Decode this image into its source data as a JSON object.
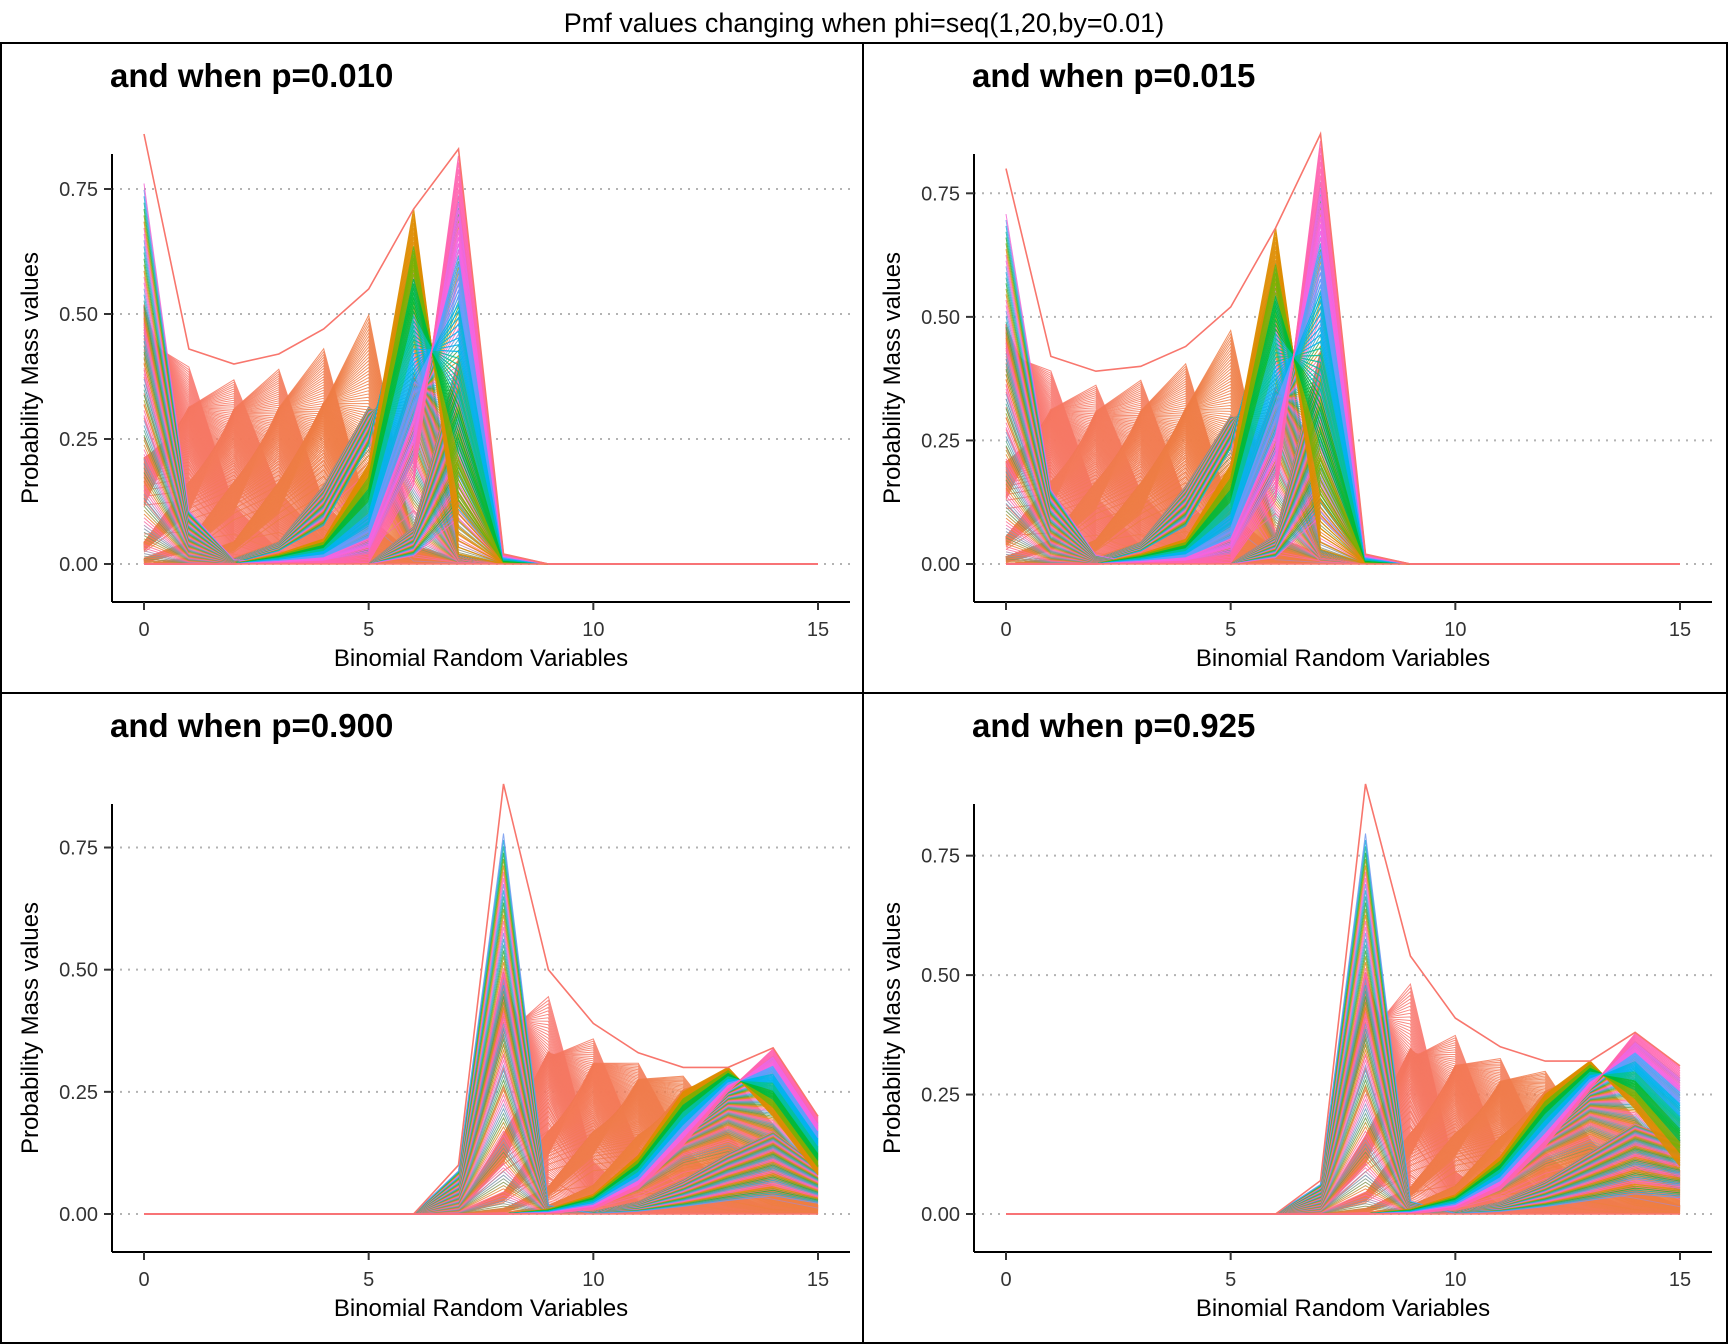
{
  "title": "Pmf values changing when phi=seq(1,20,by=0.01)",
  "colors": {
    "salmon": "#f8766d",
    "orange": "#de8c00",
    "olive": "#7cae00",
    "green": "#00ba38",
    "teal": "#00c19f",
    "cyan": "#00b4f0",
    "blue": "#619cff",
    "magenta": "#f564e3",
    "pink": "#ff64b0"
  },
  "chart_data": [
    {
      "type": "line",
      "title": "and when p=0.010",
      "xlabel": "Binomial Random Variables",
      "ylabel": "Probability Mass values",
      "xlim": [
        0,
        15
      ],
      "ylim": [
        0,
        0.86
      ],
      "xticks": [
        0,
        5,
        10,
        15
      ],
      "xtick_labels": [
        "0",
        "5",
        "10",
        "15"
      ],
      "yticks": [
        0,
        0.25,
        0.5,
        0.75
      ],
      "ytick_labels": [
        "0.00",
        "0.25",
        "0.50",
        "0.75"
      ],
      "grid": "horizontal dotted",
      "x": [
        0,
        1,
        2,
        3,
        4,
        5,
        6,
        7,
        8,
        9,
        10,
        11,
        12,
        13,
        14,
        15
      ],
      "envelope_max": [
        0.86,
        0.43,
        0.4,
        0.42,
        0.47,
        0.55,
        0.71,
        0.83,
        0.02,
        0.0,
        0.0,
        0.0,
        0.0,
        0.0,
        0.0,
        0.0
      ],
      "envelope_min": [
        0.0,
        0.0,
        0.0,
        0.0,
        0.0,
        0.0,
        0.0,
        0.0,
        0.0,
        0.0,
        0.0,
        0.0,
        0.0,
        0.0,
        0.0,
        0.0
      ],
      "series": [
        {
          "values": [
            0.86,
            0.12,
            0.01,
            0.0,
            0.0,
            0.0,
            0.0,
            0.0,
            0.0,
            0.0,
            0.0,
            0.0,
            0.0,
            0.0,
            0.0,
            0.0
          ]
        },
        {
          "values": [
            0.4,
            0.43,
            0.13,
            0.03,
            0.01,
            0.0,
            0.0,
            0.0,
            0.0,
            0.0,
            0.0,
            0.0,
            0.0,
            0.0,
            0.0,
            0.0
          ]
        },
        {
          "values": [
            0.08,
            0.3,
            0.4,
            0.16,
            0.05,
            0.01,
            0.0,
            0.0,
            0.0,
            0.0,
            0.0,
            0.0,
            0.0,
            0.0,
            0.0,
            0.0
          ]
        },
        {
          "values": [
            0.02,
            0.08,
            0.3,
            0.42,
            0.13,
            0.04,
            0.01,
            0.0,
            0.0,
            0.0,
            0.0,
            0.0,
            0.0,
            0.0,
            0.0,
            0.0
          ]
        },
        {
          "values": [
            0.0,
            0.02,
            0.08,
            0.3,
            0.47,
            0.1,
            0.02,
            0.01,
            0.0,
            0.0,
            0.0,
            0.0,
            0.0,
            0.0,
            0.0,
            0.0
          ]
        },
        {
          "values": [
            0.0,
            0.0,
            0.02,
            0.08,
            0.3,
            0.55,
            0.04,
            0.01,
            0.0,
            0.0,
            0.0,
            0.0,
            0.0,
            0.0,
            0.0,
            0.0
          ]
        },
        {
          "values": [
            0.0,
            0.0,
            0.0,
            0.02,
            0.05,
            0.2,
            0.71,
            0.02,
            0.0,
            0.0,
            0.0,
            0.0,
            0.0,
            0.0,
            0.0,
            0.0
          ]
        },
        {
          "values": [
            0.0,
            0.0,
            0.0,
            0.0,
            0.0,
            0.0,
            0.15,
            0.83,
            0.02,
            0.0,
            0.0,
            0.0,
            0.0,
            0.0,
            0.0,
            0.0
          ]
        }
      ]
    },
    {
      "type": "line",
      "title": "and when p=0.015",
      "xlabel": "Binomial Random Variables",
      "ylabel": "Probability Mass values",
      "xlim": [
        0,
        15
      ],
      "ylim": [
        0,
        0.87
      ],
      "xticks": [
        0,
        5,
        10,
        15
      ],
      "xtick_labels": [
        "0",
        "5",
        "10",
        "15"
      ],
      "yticks": [
        0,
        0.25,
        0.5,
        0.75
      ],
      "ytick_labels": [
        "0.00",
        "0.25",
        "0.50",
        "0.75"
      ],
      "grid": "horizontal dotted",
      "x": [
        0,
        1,
        2,
        3,
        4,
        5,
        6,
        7,
        8,
        9,
        10,
        11,
        12,
        13,
        14,
        15
      ],
      "envelope_max": [
        0.8,
        0.42,
        0.39,
        0.4,
        0.44,
        0.52,
        0.68,
        0.87,
        0.02,
        0.0,
        0.0,
        0.0,
        0.0,
        0.0,
        0.0,
        0.0
      ],
      "envelope_min": [
        0.0,
        0.0,
        0.0,
        0.0,
        0.0,
        0.0,
        0.0,
        0.0,
        0.0,
        0.0,
        0.0,
        0.0,
        0.0,
        0.0,
        0.0,
        0.0
      ],
      "series": [
        {
          "values": [
            0.8,
            0.17,
            0.02,
            0.0,
            0.0,
            0.0,
            0.0,
            0.0,
            0.0,
            0.0,
            0.0,
            0.0,
            0.0,
            0.0,
            0.0,
            0.0
          ]
        },
        {
          "values": [
            0.38,
            0.42,
            0.15,
            0.04,
            0.01,
            0.0,
            0.0,
            0.0,
            0.0,
            0.0,
            0.0,
            0.0,
            0.0,
            0.0,
            0.0,
            0.0
          ]
        },
        {
          "values": [
            0.1,
            0.3,
            0.39,
            0.16,
            0.05,
            0.01,
            0.0,
            0.0,
            0.0,
            0.0,
            0.0,
            0.0,
            0.0,
            0.0,
            0.0,
            0.0
          ]
        },
        {
          "values": [
            0.03,
            0.09,
            0.3,
            0.4,
            0.14,
            0.04,
            0.01,
            0.0,
            0.0,
            0.0,
            0.0,
            0.0,
            0.0,
            0.0,
            0.0,
            0.0
          ]
        },
        {
          "values": [
            0.0,
            0.02,
            0.09,
            0.3,
            0.44,
            0.11,
            0.03,
            0.01,
            0.0,
            0.0,
            0.0,
            0.0,
            0.0,
            0.0,
            0.0,
            0.0
          ]
        },
        {
          "values": [
            0.0,
            0.0,
            0.02,
            0.08,
            0.3,
            0.52,
            0.06,
            0.02,
            0.0,
            0.0,
            0.0,
            0.0,
            0.0,
            0.0,
            0.0,
            0.0
          ]
        },
        {
          "values": [
            0.0,
            0.0,
            0.0,
            0.02,
            0.05,
            0.2,
            0.68,
            0.03,
            0.0,
            0.0,
            0.0,
            0.0,
            0.0,
            0.0,
            0.0,
            0.0
          ]
        },
        {
          "values": [
            0.0,
            0.0,
            0.0,
            0.0,
            0.0,
            0.0,
            0.12,
            0.87,
            0.02,
            0.0,
            0.0,
            0.0,
            0.0,
            0.0,
            0.0,
            0.0
          ]
        }
      ]
    },
    {
      "type": "line",
      "title": "and when p=0.900",
      "xlabel": "Binomial Random Variables",
      "ylabel": "Probability Mass values",
      "xlim": [
        0,
        15
      ],
      "ylim": [
        0,
        0.88
      ],
      "xticks": [
        0,
        5,
        10,
        15
      ],
      "xtick_labels": [
        "0",
        "5",
        "10",
        "15"
      ],
      "yticks": [
        0,
        0.25,
        0.5,
        0.75
      ],
      "ytick_labels": [
        "0.00",
        "0.25",
        "0.50",
        "0.75"
      ],
      "grid": "horizontal dotted",
      "x": [
        0,
        1,
        2,
        3,
        4,
        5,
        6,
        7,
        8,
        9,
        10,
        11,
        12,
        13,
        14,
        15
      ],
      "envelope_max": [
        0.0,
        0.0,
        0.0,
        0.0,
        0.0,
        0.0,
        0.0,
        0.1,
        0.88,
        0.5,
        0.39,
        0.33,
        0.3,
        0.3,
        0.34,
        0.2
      ],
      "envelope_min": [
        0.0,
        0.0,
        0.0,
        0.0,
        0.0,
        0.0,
        0.0,
        0.0,
        0.0,
        0.0,
        0.0,
        0.0,
        0.0,
        0.0,
        0.0,
        0.0
      ],
      "series": [
        {
          "values": [
            0.0,
            0.0,
            0.0,
            0.0,
            0.0,
            0.0,
            0.0,
            0.1,
            0.88,
            0.02,
            0.0,
            0.0,
            0.0,
            0.0,
            0.0,
            0.0
          ]
        },
        {
          "values": [
            0.0,
            0.0,
            0.0,
            0.0,
            0.0,
            0.0,
            0.0,
            0.02,
            0.3,
            0.5,
            0.12,
            0.03,
            0.01,
            0.0,
            0.0,
            0.0
          ]
        },
        {
          "values": [
            0.0,
            0.0,
            0.0,
            0.0,
            0.0,
            0.0,
            0.0,
            0.0,
            0.08,
            0.3,
            0.39,
            0.15,
            0.05,
            0.01,
            0.0,
            0.0
          ]
        },
        {
          "values": [
            0.0,
            0.0,
            0.0,
            0.0,
            0.0,
            0.0,
            0.0,
            0.0,
            0.02,
            0.1,
            0.3,
            0.33,
            0.15,
            0.05,
            0.01,
            0.0
          ]
        },
        {
          "values": [
            0.0,
            0.0,
            0.0,
            0.0,
            0.0,
            0.0,
            0.0,
            0.0,
            0.0,
            0.03,
            0.1,
            0.27,
            0.3,
            0.18,
            0.06,
            0.02
          ]
        },
        {
          "values": [
            0.0,
            0.0,
            0.0,
            0.0,
            0.0,
            0.0,
            0.0,
            0.0,
            0.0,
            0.01,
            0.04,
            0.12,
            0.25,
            0.3,
            0.2,
            0.08
          ]
        },
        {
          "values": [
            0.0,
            0.0,
            0.0,
            0.0,
            0.0,
            0.0,
            0.0,
            0.0,
            0.0,
            0.0,
            0.01,
            0.05,
            0.14,
            0.25,
            0.34,
            0.2
          ]
        }
      ]
    },
    {
      "type": "line",
      "title": "and when p=0.925",
      "xlabel": "Binomial Random Variables",
      "ylabel": "Probability Mass values",
      "xlim": [
        0,
        15
      ],
      "ylim": [
        0,
        0.9
      ],
      "xticks": [
        0,
        5,
        10,
        15
      ],
      "xtick_labels": [
        "0",
        "5",
        "10",
        "15"
      ],
      "yticks": [
        0,
        0.25,
        0.5,
        0.75
      ],
      "ytick_labels": [
        "0.00",
        "0.25",
        "0.50",
        "0.75"
      ],
      "grid": "horizontal dotted",
      "x": [
        0,
        1,
        2,
        3,
        4,
        5,
        6,
        7,
        8,
        9,
        10,
        11,
        12,
        13,
        14,
        15
      ],
      "envelope_max": [
        0.0,
        0.0,
        0.0,
        0.0,
        0.0,
        0.0,
        0.0,
        0.07,
        0.9,
        0.54,
        0.41,
        0.35,
        0.32,
        0.32,
        0.38,
        0.31
      ],
      "envelope_min": [
        0.0,
        0.0,
        0.0,
        0.0,
        0.0,
        0.0,
        0.0,
        0.0,
        0.0,
        0.0,
        0.0,
        0.0,
        0.0,
        0.0,
        0.0,
        0.0
      ],
      "series": [
        {
          "values": [
            0.0,
            0.0,
            0.0,
            0.0,
            0.0,
            0.0,
            0.0,
            0.07,
            0.9,
            0.03,
            0.0,
            0.0,
            0.0,
            0.0,
            0.0,
            0.0
          ]
        },
        {
          "values": [
            0.0,
            0.0,
            0.0,
            0.0,
            0.0,
            0.0,
            0.0,
            0.01,
            0.3,
            0.54,
            0.1,
            0.02,
            0.0,
            0.0,
            0.0,
            0.0
          ]
        },
        {
          "values": [
            0.0,
            0.0,
            0.0,
            0.0,
            0.0,
            0.0,
            0.0,
            0.0,
            0.08,
            0.3,
            0.41,
            0.14,
            0.04,
            0.01,
            0.0,
            0.0
          ]
        },
        {
          "values": [
            0.0,
            0.0,
            0.0,
            0.0,
            0.0,
            0.0,
            0.0,
            0.0,
            0.02,
            0.1,
            0.3,
            0.35,
            0.14,
            0.05,
            0.01,
            0.0
          ]
        },
        {
          "values": [
            0.0,
            0.0,
            0.0,
            0.0,
            0.0,
            0.0,
            0.0,
            0.0,
            0.0,
            0.03,
            0.1,
            0.27,
            0.32,
            0.17,
            0.06,
            0.02
          ]
        },
        {
          "values": [
            0.0,
            0.0,
            0.0,
            0.0,
            0.0,
            0.0,
            0.0,
            0.0,
            0.0,
            0.01,
            0.04,
            0.12,
            0.25,
            0.32,
            0.22,
            0.1
          ]
        },
        {
          "values": [
            0.0,
            0.0,
            0.0,
            0.0,
            0.0,
            0.0,
            0.0,
            0.0,
            0.0,
            0.0,
            0.01,
            0.05,
            0.14,
            0.26,
            0.38,
            0.31
          ]
        }
      ]
    }
  ]
}
